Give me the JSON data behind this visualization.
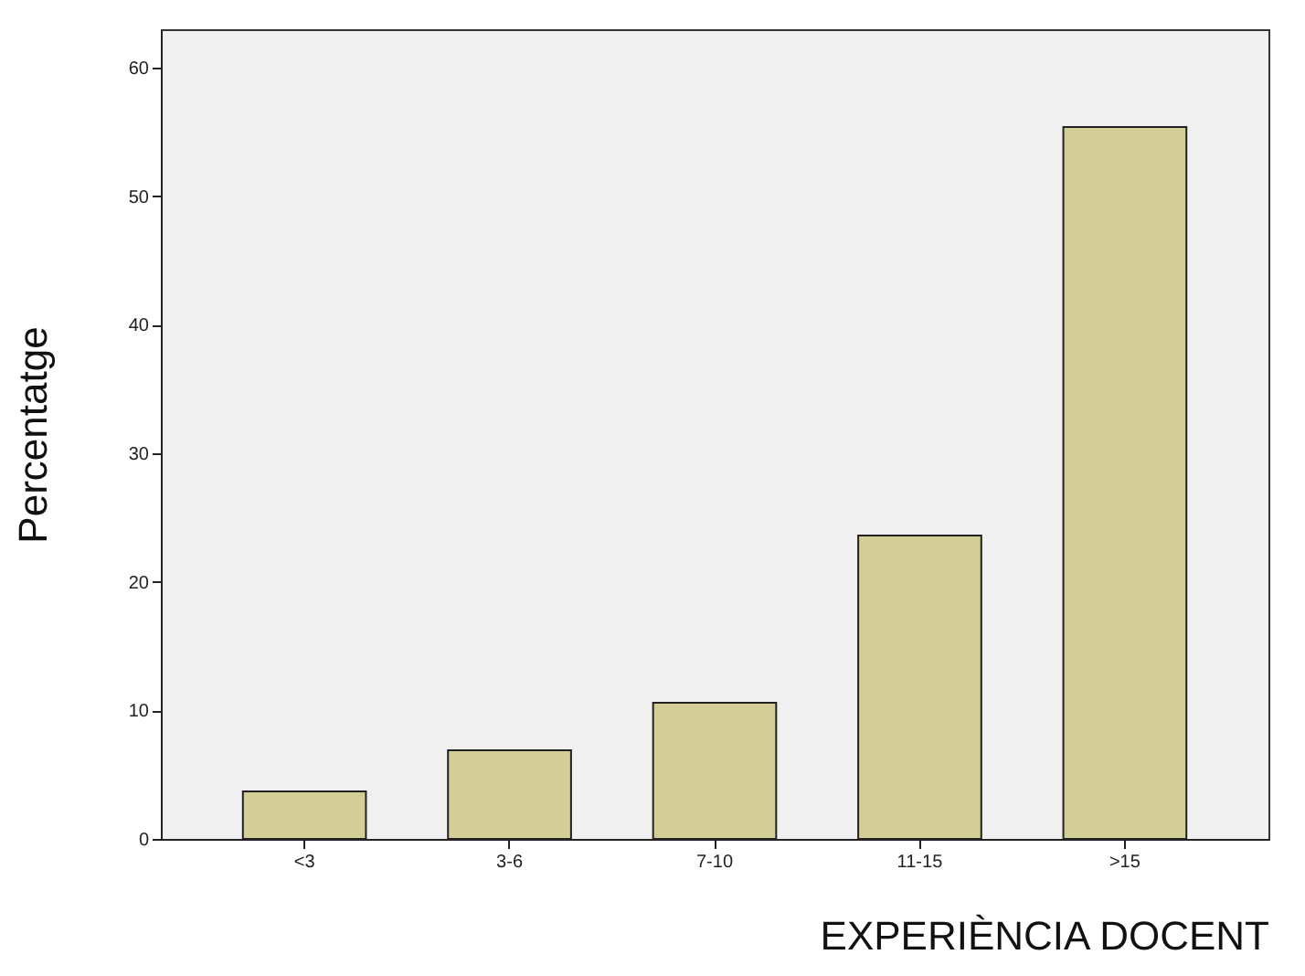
{
  "chart_data": {
    "type": "bar",
    "xlabel": "EXPERIÈNCIA DOCENT",
    "ylabel": "Percentatge",
    "categories": [
      "<3",
      "3-6",
      "7-10",
      "11-15",
      ">15"
    ],
    "values": [
      3.7,
      6.9,
      10.6,
      23.6,
      55.4
    ],
    "color": "#d3ce97",
    "ylim": [
      0,
      63
    ],
    "yticks": [
      0,
      10,
      20,
      30,
      40,
      50,
      60
    ],
    "grid": false
  }
}
